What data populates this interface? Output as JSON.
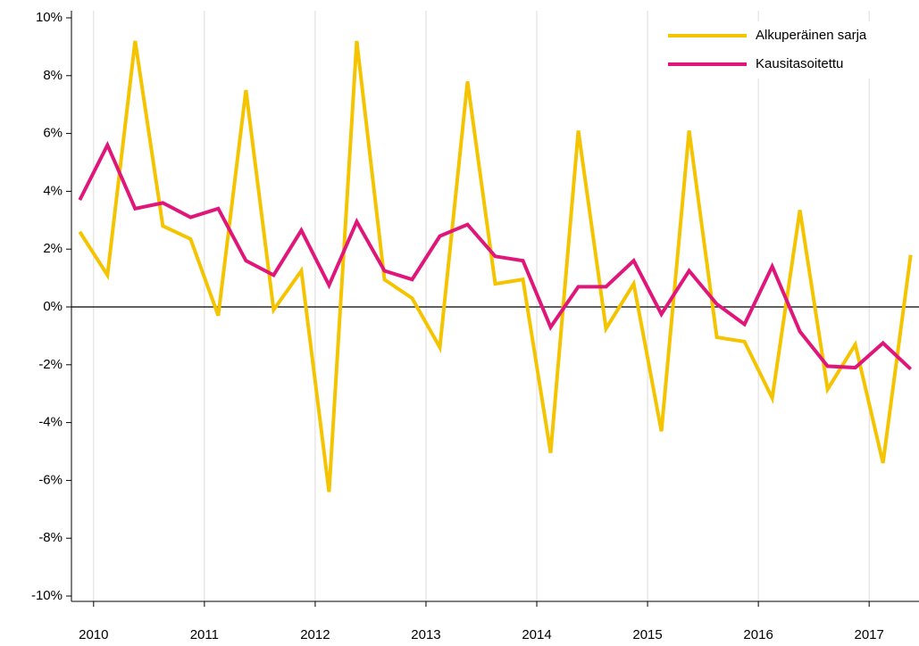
{
  "chart_data": {
    "type": "line",
    "x": [
      2009.875,
      2010.125,
      2010.375,
      2010.625,
      2010.875,
      2011.125,
      2011.375,
      2011.625,
      2011.875,
      2012.125,
      2012.375,
      2012.625,
      2012.875,
      2013.125,
      2013.375,
      2013.625,
      2013.875,
      2014.125,
      2014.375,
      2014.625,
      2014.875,
      2015.125,
      2015.375,
      2015.625,
      2015.875,
      2016.125,
      2016.375,
      2016.625,
      2016.875,
      2017.125,
      2017.375
    ],
    "series": [
      {
        "name": "Alkuperäinen sarja",
        "color": "#f5c400",
        "values": [
          2.6,
          1.1,
          9.2,
          2.8,
          2.35,
          -0.3,
          7.5,
          -0.1,
          1.25,
          -6.4,
          9.2,
          0.95,
          0.3,
          -1.4,
          7.8,
          0.8,
          0.95,
          -5.05,
          6.1,
          -0.75,
          0.8,
          -4.3,
          6.1,
          -1.05,
          -1.2,
          -3.15,
          3.35,
          -2.85,
          -1.3,
          -5.4,
          1.8
        ]
      },
      {
        "name": "Kausitasoitettu",
        "color": "#e0177a",
        "values": [
          3.7,
          5.6,
          3.4,
          3.6,
          3.1,
          3.4,
          1.6,
          1.1,
          2.65,
          0.75,
          2.95,
          1.25,
          0.95,
          2.45,
          2.85,
          1.75,
          1.6,
          -0.7,
          0.7,
          0.7,
          1.6,
          -0.25,
          1.25,
          0.1,
          -0.6,
          1.4,
          -0.85,
          -2.05,
          -2.1,
          -1.25,
          -2.15
        ]
      }
    ],
    "xlim": [
      2009.8,
      2017.45
    ],
    "xticks": [
      2010,
      2011,
      2012,
      2013,
      2014,
      2015,
      2016,
      2017
    ],
    "ylim": [
      -10,
      10
    ],
    "yticks": [
      {
        "value": -10,
        "label": "-10%"
      },
      {
        "value": -8,
        "label": "-8%"
      },
      {
        "value": -6,
        "label": "-6%"
      },
      {
        "value": -4,
        "label": "-4%"
      },
      {
        "value": -2,
        "label": "-2%"
      },
      {
        "value": 0,
        "label": "0%"
      },
      {
        "value": 2,
        "label": "2%"
      },
      {
        "value": 4,
        "label": "4%"
      },
      {
        "value": 6,
        "label": "6%"
      },
      {
        "value": 8,
        "label": "8%"
      },
      {
        "value": 10,
        "label": "10%"
      }
    ],
    "grid": "x",
    "legend": "upper right"
  }
}
